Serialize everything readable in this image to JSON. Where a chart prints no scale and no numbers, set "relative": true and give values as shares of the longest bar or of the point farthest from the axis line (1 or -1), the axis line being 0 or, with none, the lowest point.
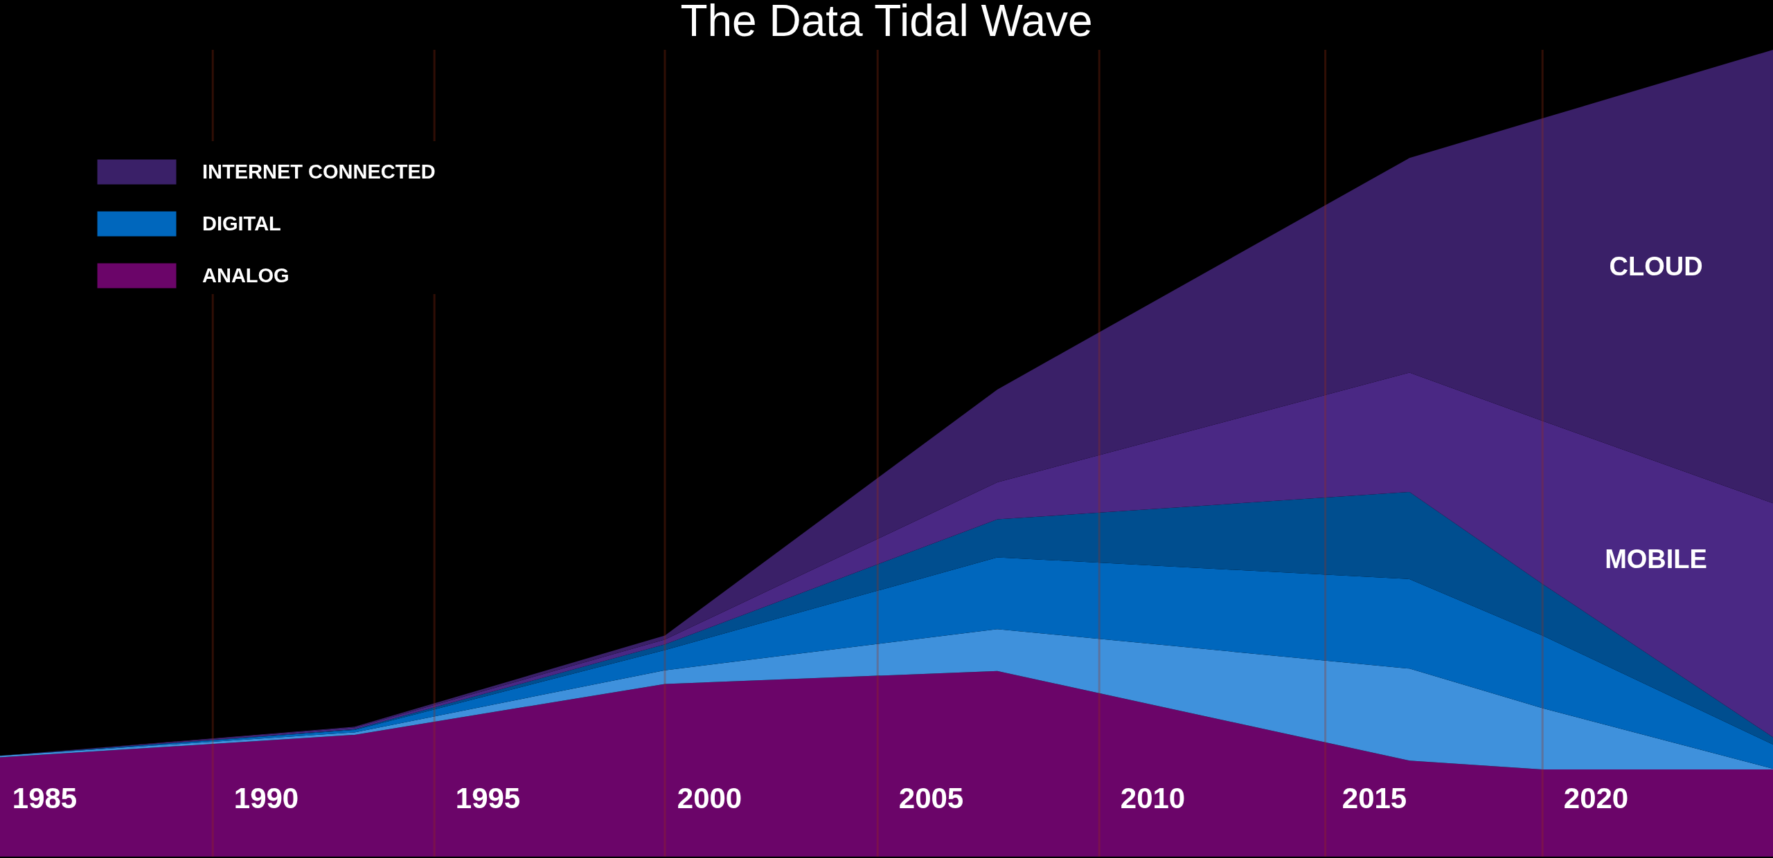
{
  "chart_data": {
    "type": "area",
    "title": "The Data Tidal Wave",
    "relative": true,
    "stacked": true,
    "x": [
      1984,
      1992,
      1999,
      2006.5,
      2015.8,
      2018.8,
      2024
    ],
    "series": [
      {
        "name": "ANALOG",
        "color": "#6b0569",
        "values": [
          0.123,
          0.151,
          0.214,
          0.23,
          0.119,
          0.108,
          0.108
        ]
      },
      {
        "color": "#3f91dc",
        "values": [
          0.002,
          0.003,
          0.017,
          0.052,
          0.114,
          0.076,
          0.001
        ]
      },
      {
        "name": "DIGITAL",
        "color": "#0067bd",
        "values": [
          0,
          0.003,
          0.025,
          0.089,
          0.111,
          0.09,
          0.03
        ]
      },
      {
        "color": "#004e8f",
        "values": [
          0,
          0.001,
          0.007,
          0.047,
          0.108,
          0.064,
          0.009
        ]
      },
      {
        "color": "#4a2884",
        "values": [
          0,
          0.002,
          0.006,
          0.046,
          0.148,
          0.202,
          0.29
        ]
      },
      {
        "name": "INTERNET CONNECTED",
        "color": "#3a2068",
        "values": [
          0,
          0.001,
          0.005,
          0.115,
          0.266,
          0.375,
          0.562
        ]
      }
    ],
    "xlim": [
      1984,
      2024
    ],
    "xticks": [
      1985,
      1990,
      1995,
      2000,
      2005,
      2010,
      2015,
      2020
    ],
    "ref_lines": [
      {
        "axis": "x",
        "value": 1988.8
      },
      {
        "axis": "x",
        "value": 1993.8
      },
      {
        "axis": "x",
        "value": 1999
      },
      {
        "axis": "x",
        "value": 2003.8
      },
      {
        "axis": "x",
        "value": 2008.8
      },
      {
        "axis": "x",
        "value": 2013.9
      },
      {
        "axis": "x",
        "value": 2018.8
      }
    ],
    "legend": "top left",
    "annotations": [
      "CLOUD",
      "MOBILE"
    ]
  }
}
